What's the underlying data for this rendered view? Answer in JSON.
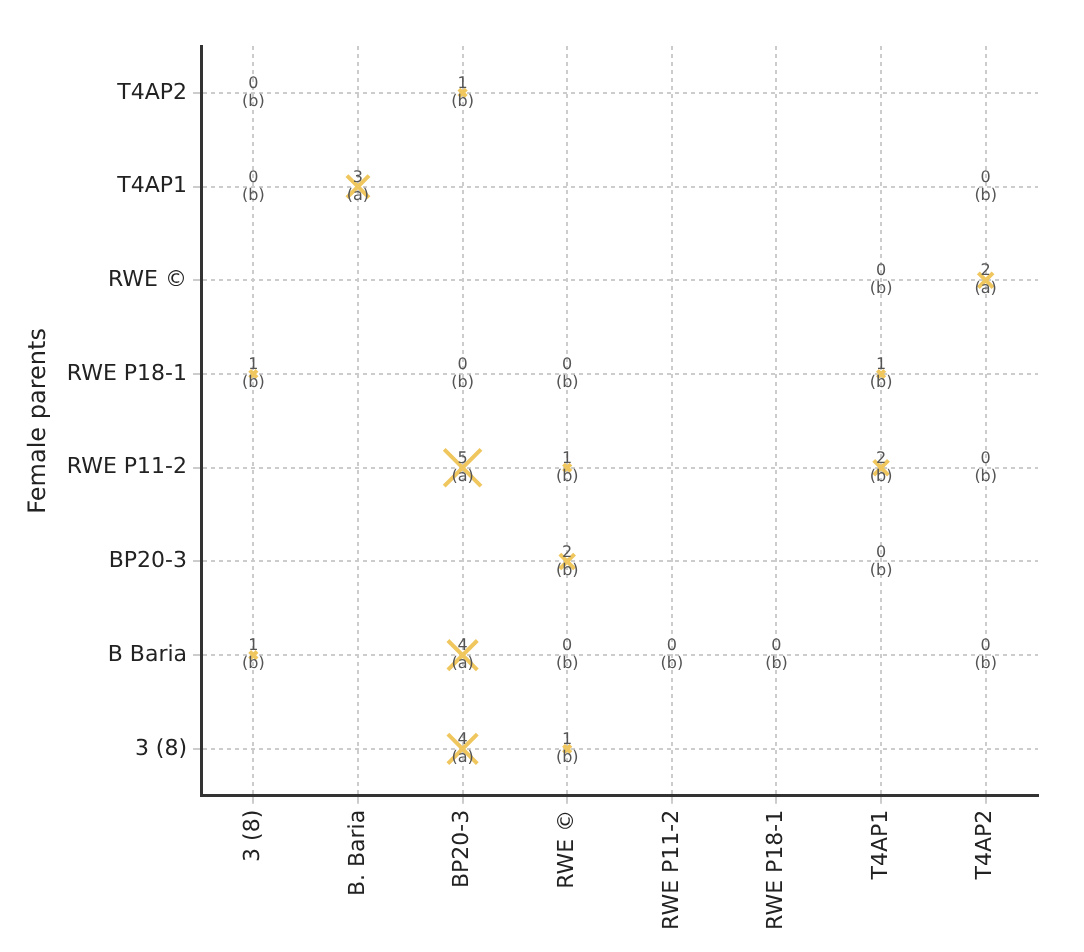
{
  "chart_data": {
    "type": "heatmap",
    "ylabel": "Female parents",
    "color": "#f0c75e",
    "grid": true,
    "categories": [
      "3 (8)",
      "B. Baria",
      "BP20-3",
      "RWE ©",
      "RWE P11-2",
      "RWE P18-1",
      "T4AP1",
      "T4AP2"
    ],
    "y_categories": [
      "T4AP2",
      "T4AP1",
      "RWE ©",
      "RWE P18-1",
      "RWE P11-2",
      "BP20-3",
      "B Baria",
      "3 (8)"
    ],
    "cells": [
      [
        0,
        null,
        1,
        null,
        null,
        null,
        null,
        null
      ],
      [
        0,
        3,
        null,
        null,
        null,
        null,
        null,
        0
      ],
      [
        null,
        null,
        null,
        null,
        null,
        null,
        0,
        2
      ],
      [
        1,
        null,
        0,
        0,
        null,
        null,
        1,
        null
      ],
      [
        null,
        null,
        5,
        1,
        null,
        null,
        2,
        0
      ],
      [
        null,
        null,
        null,
        2,
        null,
        null,
        0,
        null
      ],
      [
        1,
        null,
        4,
        0,
        0,
        0,
        null,
        0
      ],
      [
        null,
        null,
        4,
        1,
        null,
        null,
        null,
        null
      ]
    ],
    "cell_labels": [
      [
        "0\n(b)",
        null,
        "1\n(b)",
        null,
        null,
        null,
        null,
        null
      ],
      [
        "0\n(b)",
        "3\n(a)",
        null,
        null,
        null,
        null,
        null,
        "0\n(b)"
      ],
      [
        null,
        null,
        null,
        null,
        null,
        null,
        "0\n(b)",
        "2\n(a)"
      ],
      [
        "1\n(b)",
        null,
        "0\n(b)",
        "0\n(b)",
        null,
        null,
        "1\n(b)",
        null
      ],
      [
        null,
        null,
        "5\n(a)",
        "1\n(b)",
        null,
        null,
        "2\n(b)",
        "0\n(b)"
      ],
      [
        null,
        null,
        null,
        "2\n(b)",
        null,
        null,
        "0\n(b)",
        null
      ],
      [
        "1\n(b)",
        null,
        "4\n(a)",
        "0\n(b)",
        "0\n(b)",
        "0\n(b)",
        null,
        "0\n(b)"
      ],
      [
        null,
        null,
        "4\n(a)",
        "1\n(b)",
        null,
        null,
        null,
        null
      ]
    ]
  }
}
